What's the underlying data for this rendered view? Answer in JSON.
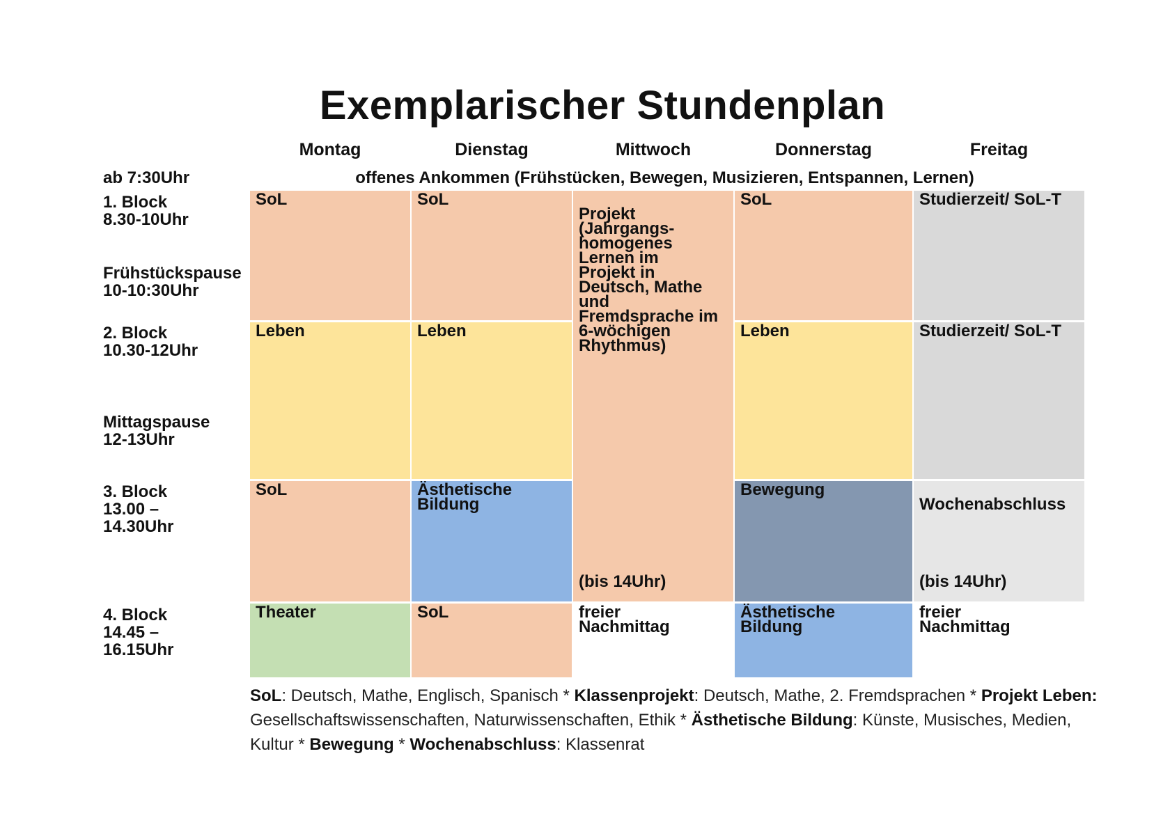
{
  "title": "Exemplarischer Stundenplan",
  "days": [
    "Montag",
    "Dienstag",
    "Mittwoch",
    "Donnerstag",
    "Freitag"
  ],
  "arrival": {
    "time": "ab 7:30Uhr",
    "text": "offenes Ankommen (Frühstücken, Bewegen, Musizieren, Entspannen, Lernen)"
  },
  "time_labels": {
    "block1": "1.  Block\n8.30-10Uhr",
    "break1": "Frühstückspause\n10-10:30Uhr",
    "block2": "2. Block\n10.30-12Uhr",
    "break2": "Mittagspause\n12-13Uhr",
    "block3": "3. Block\n13.00 –\n14.30Uhr",
    "block4": "4. Block\n14.45 –\n16.15Uhr"
  },
  "cells": {
    "mon_b1": "SoL",
    "mon_b2": "Leben",
    "mon_b3": "SoL",
    "mon_b4": "Theater",
    "tue_b1": "SoL",
    "tue_b2": "Leben",
    "tue_b3": "Ästhetische\nBildung",
    "tue_b4": "SoL",
    "wed_b1to3": "Projekt\n(Jahrgangs-\nhomogenes\nLernen im\nProjekt in\nDeutsch, Mathe\nund\nFremdsprache im\n6-wöchigen\nRhythmus)",
    "wed_b1to3_note": "(bis 14Uhr)",
    "wed_b4": "freier\nNachmittag",
    "thu_b1": "SoL",
    "thu_b2": "Leben",
    "thu_b3": "Bewegung",
    "thu_b4": "Ästhetische\nBildung",
    "fri_b1": "Studierzeit/ SoL-T",
    "fri_b2": "Studierzeit/ SoL-T",
    "fri_b3": "Wochenabschluss",
    "fri_b3_note": "(bis 14Uhr)",
    "fri_b4": "freier\nNachmittag"
  },
  "colors": {
    "sol": "#f5c9ab",
    "leben": "#fde49a",
    "studierzeit": "#d9d9d9",
    "wochenabschluss": "#e6e6e6",
    "aesthetische_bildung": "#8eb4e3",
    "bewegung": "#8497b0",
    "theater": "#c4dfb3"
  },
  "legend": {
    "sol_term": "SoL",
    "sol_def": ": Deutsch, Mathe, Englisch, Spanisch * ",
    "klassenprojekt_term": "Klassenprojekt",
    "klassenprojekt_def": ": Deutsch, Mathe, 2. Fremdsprachen * ",
    "leben_term": "Projekt Leben:",
    "leben_def": " Gesellschaftswissenschaften, Naturwissenschaften, Ethik * ",
    "aesthetik_term": "Ästhetische Bildung",
    "aesthetik_def": ": Künste, Musisches, Medien, Kultur * ",
    "bewegung_term": "Bewegung",
    "sep": " * ",
    "wochenabschluss_term": "Wochenabschluss",
    "wochenabschluss_def": ": Klassenrat"
  }
}
